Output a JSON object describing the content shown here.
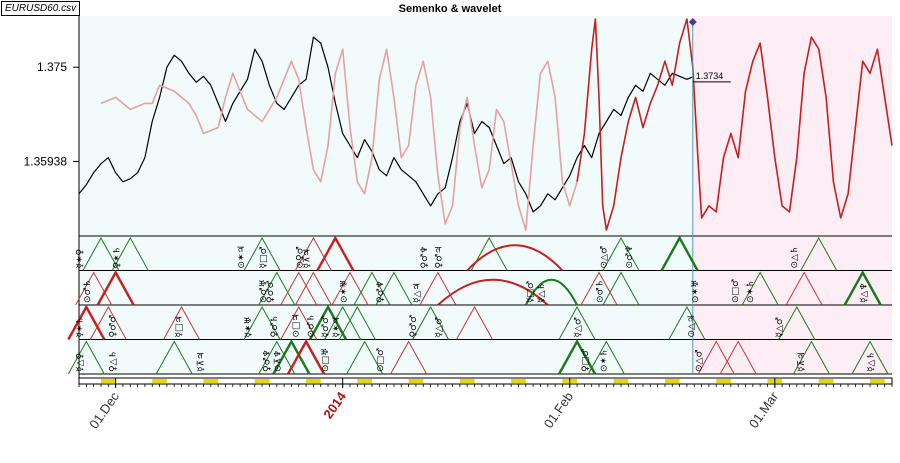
{
  "file_label": "EURUSD60.csv",
  "chart_data": {
    "type": "line",
    "title": "Semenko & wavelet",
    "xlabel": "",
    "ylabel": "",
    "ylim": [
      1.347,
      1.3835
    ],
    "y_ticks": [
      1.35938,
      1.375
    ],
    "y_tick_labels": [
      "1.35938",
      "1.375"
    ],
    "x_tick_labels": [
      "01.Dec",
      "2014",
      "01.Feb",
      "01.Mar"
    ],
    "x_tick_days": [
      0,
      31,
      62,
      90
    ],
    "x_range_days": [
      -5,
      106
    ],
    "current_day": 78.8,
    "current_price_label": "1.3734",
    "current_price": 1.3734,
    "grid": false,
    "series": [
      {
        "color": "#000000",
        "x": [
          -5,
          -4,
          -3,
          -2,
          -1,
          0,
          1,
          2,
          3,
          4,
          5,
          6,
          7,
          8,
          9,
          10,
          11,
          12,
          13,
          14,
          15,
          16,
          17,
          18,
          19,
          20,
          21,
          22,
          23,
          24,
          25,
          26,
          27,
          28,
          29,
          30,
          31,
          32,
          33,
          34,
          35,
          36,
          37,
          38,
          39,
          40,
          41,
          42,
          43,
          44,
          45,
          46,
          47,
          48,
          49,
          50,
          51,
          52,
          53,
          54,
          55,
          56,
          57,
          58,
          59,
          60,
          61,
          62,
          63,
          64,
          65,
          66,
          67,
          68,
          69,
          70,
          71,
          72,
          73,
          74,
          75,
          76,
          77,
          78,
          78.8
        ],
        "values": [
          1.354,
          1.3555,
          1.3575,
          1.359,
          1.36,
          1.3575,
          1.356,
          1.3565,
          1.3575,
          1.36,
          1.366,
          1.37,
          1.375,
          1.377,
          1.376,
          1.374,
          1.3725,
          1.3735,
          1.372,
          1.369,
          1.366,
          1.369,
          1.371,
          1.373,
          1.378,
          1.376,
          1.372,
          1.369,
          1.368,
          1.37,
          1.372,
          1.373,
          1.38,
          1.379,
          1.375,
          1.369,
          1.364,
          1.362,
          1.36,
          1.363,
          1.361,
          1.358,
          1.357,
          1.36,
          1.358,
          1.357,
          1.356,
          1.354,
          1.352,
          1.354,
          1.355,
          1.36,
          1.366,
          1.369,
          1.364,
          1.366,
          1.365,
          1.362,
          1.359,
          1.36,
          1.356,
          1.354,
          1.351,
          1.352,
          1.354,
          1.353,
          1.355,
          1.357,
          1.36,
          1.362,
          1.36,
          1.364,
          1.366,
          1.368,
          1.367,
          1.37,
          1.372,
          1.371,
          1.374,
          1.373,
          1.372,
          1.374,
          1.3735,
          1.373,
          1.3734
        ]
      },
      {
        "color": "#e8a0a0",
        "x": [
          -2,
          0,
          2,
          4,
          5,
          6,
          8,
          10,
          11,
          12,
          14,
          15,
          16,
          18,
          20,
          22,
          24,
          25,
          26,
          27,
          28,
          29,
          30,
          31,
          32,
          33,
          34,
          35,
          36,
          37,
          38,
          39,
          40,
          41,
          42,
          43,
          44,
          45,
          46,
          47,
          48,
          49,
          50,
          51,
          52,
          53,
          54,
          55,
          56,
          57,
          58,
          59,
          60,
          61,
          62,
          63
        ],
        "values": [
          1.369,
          1.37,
          1.368,
          1.369,
          1.369,
          1.372,
          1.371,
          1.369,
          1.367,
          1.364,
          1.365,
          1.37,
          1.374,
          1.368,
          1.366,
          1.37,
          1.376,
          1.373,
          1.365,
          1.358,
          1.356,
          1.362,
          1.374,
          1.378,
          1.365,
          1.356,
          1.354,
          1.36,
          1.373,
          1.378,
          1.37,
          1.36,
          1.362,
          1.372,
          1.376,
          1.37,
          1.357,
          1.349,
          1.352,
          1.365,
          1.37,
          1.362,
          1.355,
          1.358,
          1.368,
          1.366,
          1.359,
          1.352,
          1.348,
          1.362,
          1.374,
          1.376,
          1.37,
          1.356,
          1.352,
          1.356
        ]
      },
      {
        "color": "#c81e1e",
        "x": [
          63,
          64,
          65,
          65.5,
          66,
          66.5,
          67,
          68,
          69,
          70,
          71,
          72,
          73,
          74,
          75,
          76,
          77,
          78,
          78.8,
          79.5,
          80,
          81,
          82,
          83,
          84,
          85,
          86,
          87,
          88,
          89,
          90,
          91,
          92,
          93,
          94,
          95,
          96,
          97,
          98,
          99,
          100,
          101,
          102,
          103,
          104,
          105,
          106
        ],
        "values": [
          1.356,
          1.364,
          1.378,
          1.383,
          1.37,
          1.352,
          1.348,
          1.352,
          1.36,
          1.366,
          1.37,
          1.365,
          1.369,
          1.372,
          1.376,
          1.372,
          1.379,
          1.383,
          1.375,
          1.36,
          1.35,
          1.352,
          1.351,
          1.36,
          1.364,
          1.36,
          1.371,
          1.376,
          1.379,
          1.37,
          1.36,
          1.352,
          1.351,
          1.36,
          1.374,
          1.38,
          1.378,
          1.37,
          1.356,
          1.35,
          1.354,
          1.365,
          1.376,
          1.374,
          1.378,
          1.37,
          1.362
        ]
      }
    ]
  },
  "bands": [
    {
      "triangles": [
        {
          "day": -2,
          "color": "#1a7a1a",
          "bold": false
        },
        {
          "day": 2,
          "color": "#1a7a1a",
          "bold": false
        },
        {
          "day": 20,
          "color": "#1a7a1a",
          "bold": false
        },
        {
          "day": 27,
          "color": "#c83232",
          "bold": false
        },
        {
          "day": 30,
          "color": "#c81e1e",
          "bold": true
        },
        {
          "day": 51,
          "color": "#1a7a1a",
          "bold": false
        },
        {
          "day": 69,
          "color": "#1a7a1a",
          "bold": false
        },
        {
          "day": 77,
          "color": "#1a7a1a",
          "bold": true
        },
        {
          "day": 96,
          "color": "#1a7a1a",
          "bold": false
        }
      ],
      "arcs": [
        {
          "from": 48,
          "to": 61,
          "color": "#c81e1e"
        }
      ],
      "glyphs": [
        {
          "day": -4.5,
          "text": "☿✶♀"
        },
        {
          "day": 0.5,
          "text": "♀✶♄"
        },
        {
          "day": 17.5,
          "text": "⊙✶♃"
        },
        {
          "day": 20.5,
          "text": "☿□♂"
        },
        {
          "day": 25.5,
          "text": "⊙♀♂"
        },
        {
          "day": 26.5,
          "text": "☿⊼♃"
        },
        {
          "day": 42.5,
          "text": "♀♂♆"
        },
        {
          "day": 44.5,
          "text": "♀♂♃"
        },
        {
          "day": 67,
          "text": "⊙△♂"
        },
        {
          "day": 70.5,
          "text": "⊙♂♆"
        },
        {
          "day": 93,
          "text": "⊙△♄"
        }
      ]
    },
    {
      "triangles": [
        {
          "day": -3,
          "color": "#c83232",
          "bold": false
        },
        {
          "day": 0,
          "color": "#c81e1e",
          "bold": true
        },
        {
          "day": 22,
          "color": "#1a7a1a",
          "bold": false
        },
        {
          "day": 25,
          "color": "#c83232",
          "bold": false
        },
        {
          "day": 27,
          "color": "#c83232",
          "bold": false
        },
        {
          "day": 32,
          "color": "#c83232",
          "bold": false
        },
        {
          "day": 35,
          "color": "#1a7a1a",
          "bold": false
        },
        {
          "day": 38,
          "color": "#1a7a1a",
          "bold": false
        },
        {
          "day": 44,
          "color": "#c83232",
          "bold": false
        },
        {
          "day": 66,
          "color": "#c83232",
          "bold": false
        },
        {
          "day": 69,
          "color": "#1a7a1a",
          "bold": false
        },
        {
          "day": 88,
          "color": "#1a7a1a",
          "bold": false
        },
        {
          "day": 94,
          "color": "#c83232",
          "bold": false
        },
        {
          "day": 102,
          "color": "#1a7a1a",
          "bold": true
        }
      ],
      "arcs": [
        {
          "from": 44,
          "to": 59,
          "color": "#c81e1e"
        },
        {
          "from": 56,
          "to": 63,
          "color": "#1a7a1a"
        }
      ],
      "glyphs": [
        {
          "day": -3.5,
          "text": "⊙♂♄"
        },
        {
          "day": 20.5,
          "text": "⊙♂♅"
        },
        {
          "day": 21.5,
          "text": "♀♂♂"
        },
        {
          "day": 31.5,
          "text": "⊙✶♅"
        },
        {
          "day": 36.5,
          "text": "♀♂♆"
        },
        {
          "day": 41.5,
          "text": "☿△♃"
        },
        {
          "day": 57,
          "text": "☿□♂"
        },
        {
          "day": 58.5,
          "text": "☿△♄"
        },
        {
          "day": 66.5,
          "text": "⊙♂♄"
        },
        {
          "day": 79.5,
          "text": "⊙✶♅"
        },
        {
          "day": 85,
          "text": "⊙□♂"
        },
        {
          "day": 87,
          "text": "⊙✶♄"
        },
        {
          "day": 102.5,
          "text": "☿△♆"
        }
      ]
    },
    {
      "triangles": [
        {
          "day": -4,
          "color": "#c81e1e",
          "bold": true
        },
        {
          "day": -1,
          "color": "#c83232",
          "bold": false
        },
        {
          "day": 9,
          "color": "#c83232",
          "bold": false
        },
        {
          "day": 20,
          "color": "#1a7a1a",
          "bold": false
        },
        {
          "day": 25,
          "color": "#c83232",
          "bold": false
        },
        {
          "day": 29,
          "color": "#1a7a1a",
          "bold": true
        },
        {
          "day": 31,
          "color": "#1a7a1a",
          "bold": false
        },
        {
          "day": 33,
          "color": "#1a7a1a",
          "bold": false
        },
        {
          "day": 43,
          "color": "#1a7a1a",
          "bold": false
        },
        {
          "day": 49,
          "color": "#c83232",
          "bold": false
        },
        {
          "day": 63,
          "color": "#1a7a1a",
          "bold": false
        },
        {
          "day": 78,
          "color": "#1a7a1a",
          "bold": false
        },
        {
          "day": 93,
          "color": "#1a7a1a",
          "bold": false
        }
      ],
      "arcs": [],
      "glyphs": [
        {
          "day": -4.5,
          "text": "☿✶♄"
        },
        {
          "day": 0,
          "text": "♀♂♂"
        },
        {
          "day": 9,
          "text": "☿□♃"
        },
        {
          "day": 18.5,
          "text": "☿✶♅"
        },
        {
          "day": 22,
          "text": "♀♂♄"
        },
        {
          "day": 25,
          "text": "⊙□♃"
        },
        {
          "day": 27,
          "text": "⊙♂♄"
        },
        {
          "day": 29,
          "text": "☿♂♂"
        },
        {
          "day": 30.5,
          "text": "☿✶♃"
        },
        {
          "day": 41,
          "text": "♀♂♂"
        },
        {
          "day": 44.5,
          "text": "☿△♂"
        },
        {
          "day": 63.5,
          "text": "☿△♂"
        },
        {
          "day": 79,
          "text": "⊙△♃"
        },
        {
          "day": 91,
          "text": "☿△♂"
        }
      ]
    },
    {
      "triangles": [
        {
          "day": -4,
          "color": "#1a7a1a",
          "bold": false
        },
        {
          "day": 8,
          "color": "#1a7a1a",
          "bold": false
        },
        {
          "day": 22,
          "color": "#1a7a1a",
          "bold": false
        },
        {
          "day": 24,
          "color": "#1a7a1a",
          "bold": true
        },
        {
          "day": 26,
          "color": "#c81e1e",
          "bold": true
        },
        {
          "day": 34,
          "color": "#1a7a1a",
          "bold": false
        },
        {
          "day": 40,
          "color": "#c83232",
          "bold": false
        },
        {
          "day": 63,
          "color": "#1a7a1a",
          "bold": true
        },
        {
          "day": 67,
          "color": "#1a7a1a",
          "bold": false
        },
        {
          "day": 82,
          "color": "#c83232",
          "bold": false
        },
        {
          "day": 85,
          "color": "#c83232",
          "bold": false
        },
        {
          "day": 95,
          "color": "#1a7a1a",
          "bold": false
        },
        {
          "day": 103,
          "color": "#1a7a1a",
          "bold": false
        }
      ],
      "arcs": [],
      "glyphs": [
        {
          "day": -4.5,
          "text": "☿△♀"
        },
        {
          "day": 0,
          "text": "♀△♄"
        },
        {
          "day": 12,
          "text": "☿⊼♃"
        },
        {
          "day": 21,
          "text": "♀♂♆"
        },
        {
          "day": 22.5,
          "text": "⊙⊼♆"
        },
        {
          "day": 29,
          "text": "⊙□♅"
        },
        {
          "day": 36.5,
          "text": "⊙□♂"
        },
        {
          "day": 64.5,
          "text": "♀□♂"
        },
        {
          "day": 67,
          "text": "⊙✶♄"
        },
        {
          "day": 80,
          "text": "⊙△♂"
        },
        {
          "day": 94,
          "text": "☿⊼♃"
        },
        {
          "day": 103.5,
          "text": "☿△♄"
        }
      ]
    }
  ]
}
